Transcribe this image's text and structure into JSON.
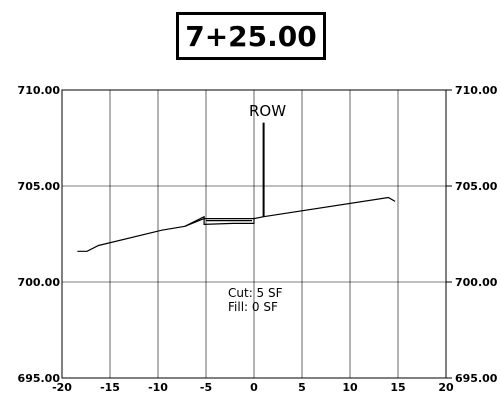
{
  "station": {
    "label": "7+25.00"
  },
  "row_label": "ROW",
  "cut_label": "Cut: 5  SF",
  "fill_label": "Fill: 0  SF",
  "colors": {
    "grid": "#000000",
    "line": "#000000",
    "background": "#ffffff"
  },
  "chart_data": {
    "type": "line",
    "title": "7+25.00",
    "x_ticks": [
      "-20",
      "-15",
      "-10",
      "-5",
      "0",
      "5",
      "10",
      "15",
      "20"
    ],
    "y_ticks_left": [
      "710.00",
      "705.00",
      "700.00",
      "695.00"
    ],
    "y_ticks_right": [
      "710.00",
      "705.00",
      "700.00",
      "695.00"
    ],
    "xlim": [
      -20,
      20
    ],
    "ylim": [
      695,
      710
    ],
    "grid": true,
    "series": [
      {
        "points": [
          [
            -18.4,
            701.6
          ],
          [
            -17.4,
            701.6
          ],
          [
            -16.2,
            701.9
          ],
          [
            -9.6,
            702.7
          ],
          [
            -7.2,
            702.9
          ],
          [
            -5.2,
            703.3
          ],
          [
            0,
            703.3
          ],
          [
            1.0,
            703.4
          ],
          [
            14,
            704.4
          ],
          [
            14.7,
            704.2
          ]
        ]
      },
      {
        "points": [
          [
            -7.2,
            702.9
          ],
          [
            -5.2,
            703.4
          ],
          [
            -5.2,
            703.0
          ],
          [
            -2.2,
            703.05
          ],
          [
            0,
            703.05
          ],
          [
            0,
            703.35
          ]
        ]
      },
      {
        "points": [
          [
            -5.0,
            703.2
          ],
          [
            -0.2,
            703.2
          ]
        ]
      }
    ],
    "row_line": {
      "x": 1.0,
      "y_bottom": 703.4,
      "y_top": 708.3
    }
  }
}
